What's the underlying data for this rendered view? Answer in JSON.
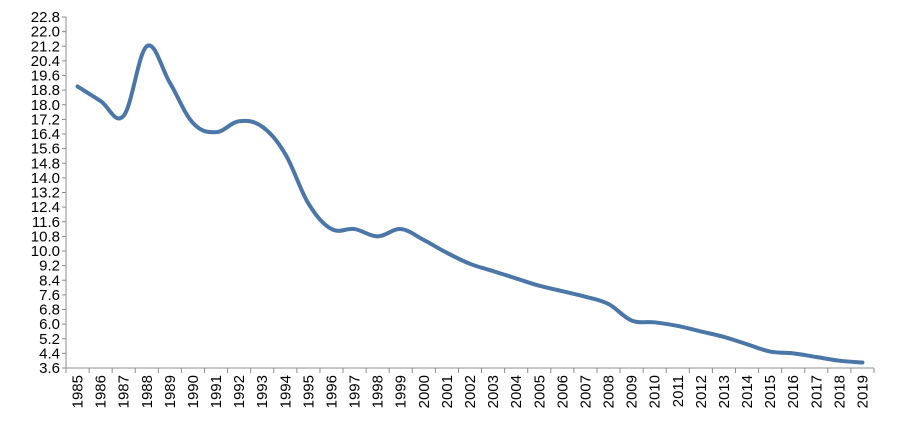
{
  "chart_data": {
    "type": "line",
    "title": "",
    "xlabel": "",
    "ylabel": "",
    "ylim": [
      3.6,
      22.8
    ],
    "ytick_step": 0.8,
    "grid": false,
    "legend": "none",
    "series_color": "#4a76a8",
    "axis_color": "#8c8c8c",
    "categories": [
      "1985",
      "1986",
      "1987",
      "1988",
      "1989",
      "1990",
      "1991",
      "1992",
      "1993",
      "1994",
      "1995",
      "1996",
      "1997",
      "1998",
      "1999",
      "2000",
      "2001",
      "2002",
      "2003",
      "2004",
      "2005",
      "2006",
      "2007",
      "2008",
      "2009",
      "2010",
      "2011",
      "2012",
      "2013",
      "2014",
      "2015",
      "2016",
      "2017",
      "2018",
      "2019"
    ],
    "yticks": [
      "3.6",
      "4.4",
      "5.2",
      "6.0",
      "6.8",
      "7.6",
      "8.4",
      "9.2",
      "10.0",
      "10.8",
      "11.6",
      "12.4",
      "13.2",
      "14.0",
      "14.8",
      "15.6",
      "16.4",
      "17.2",
      "18.0",
      "18.8",
      "19.6",
      "20.4",
      "21.2",
      "22.0",
      "22.8"
    ],
    "series": [
      {
        "values": [
          19.0,
          18.2,
          17.4,
          21.2,
          19.2,
          17.0,
          16.5,
          17.1,
          16.8,
          15.3,
          12.6,
          11.2,
          11.2,
          10.8,
          11.2,
          10.6,
          9.9,
          9.3,
          8.9,
          8.5,
          8.1,
          7.8,
          7.5,
          7.1,
          6.2,
          6.1,
          5.9,
          5.6,
          5.3,
          4.9,
          4.5,
          4.4,
          4.2,
          4.0,
          3.9
        ]
      }
    ]
  }
}
